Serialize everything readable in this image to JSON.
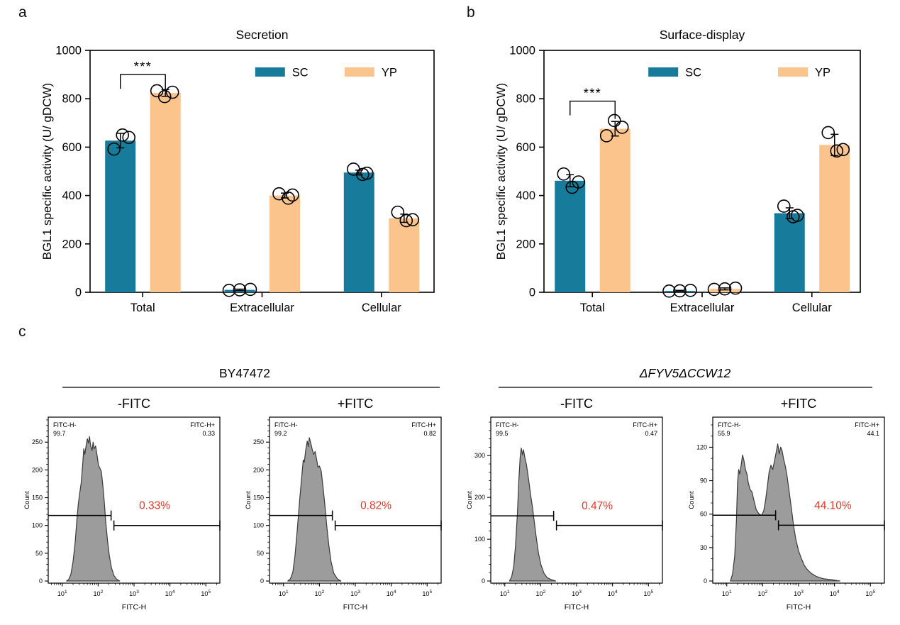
{
  "panels": {
    "a": "a",
    "b": "b",
    "c": "c"
  },
  "colors": {
    "sc": "#177C9B",
    "yp": "#FAC48C",
    "hist_fill": "#9C9C9C",
    "hist_stroke": "#3A3A3A",
    "percent_red": "#EE3524",
    "axis": "#000000"
  },
  "flow_headers": [
    {
      "label": "BY47472",
      "italic": false
    },
    {
      "label": "ΔFYV5ΔCCW12",
      "italic": true
    }
  ],
  "chart_data": [
    {
      "id": "panel-a",
      "type": "bar",
      "title": "Secretion",
      "ylabel": "BGL1 specific activity (U/ gDCW)",
      "ylim": [
        0,
        1000
      ],
      "yticks": [
        0,
        200,
        400,
        600,
        800,
        1000
      ],
      "categories": [
        "Total",
        "Extracellular",
        "Cellular"
      ],
      "legend": [
        "SC",
        "YP"
      ],
      "series": [
        {
          "name": "SC",
          "color_key": "sc",
          "values": [
            627,
            10,
            495
          ],
          "sd": [
            30,
            3,
            10
          ],
          "points": [
            [
              592,
              650,
              640
            ],
            [
              8,
              10,
              12
            ],
            [
              509,
              487,
              492
            ]
          ]
        },
        {
          "name": "YP",
          "color_key": "yp",
          "values": [
            824,
            400,
            306
          ],
          "sd": [
            14,
            10,
            17
          ],
          "points": [
            [
              833,
              809,
              827
            ],
            [
              407,
              389,
              402
            ],
            [
              331,
              296,
              300
            ]
          ]
        }
      ],
      "significance": {
        "category": "Total",
        "label": "***",
        "y": 900
      }
    },
    {
      "id": "panel-b",
      "type": "bar",
      "title": "Surface-display",
      "ylabel": "BGL1 specific activity (U/ gDCW)",
      "ylim": [
        0,
        1000
      ],
      "yticks": [
        0,
        200,
        400,
        600,
        800,
        1000
      ],
      "categories": [
        "Total",
        "Extracellular",
        "Cellular"
      ],
      "legend": [
        "SC",
        "YP"
      ],
      "series": [
        {
          "name": "SC",
          "color_key": "sc",
          "values": [
            461,
            6,
            327
          ],
          "sd": [
            25,
            2,
            22
          ],
          "points": [
            [
              489,
              434,
              456
            ],
            [
              5,
              6,
              8
            ],
            [
              356,
              312,
              318
            ]
          ]
        },
        {
          "name": "YP",
          "color_key": "yp",
          "values": [
            676,
            14,
            609
          ],
          "sd": [
            30,
            4,
            44
          ],
          "points": [
            [
              647,
              710,
              682
            ],
            [
              12,
              14,
              17
            ],
            [
              660,
              584,
              590
            ]
          ]
        }
      ],
      "significance": {
        "category": "Total",
        "label": "***",
        "y": 790
      }
    },
    {
      "id": "hist-1",
      "type": "area",
      "group": "BY47472",
      "title": "-FITC",
      "xlabel": "FITC-H",
      "ylabel": "Count",
      "xscale": "log",
      "xlim_log": [
        0.61,
        5.39
      ],
      "ymax": 295,
      "yticks": [
        0,
        50,
        100,
        150,
        200,
        250
      ],
      "minor_step": 10,
      "corner_left": {
        "label": "FITC-H-",
        "value": "99.7"
      },
      "corner_right": {
        "label": "FITC-H+",
        "value": "0.33"
      },
      "percent_label": "0.33%",
      "gate": {
        "split_log": 2.4,
        "neg_y": 118,
        "pos_y": 100
      },
      "curve_log_x_counts": [
        [
          1.12,
          0
        ],
        [
          1.18,
          3
        ],
        [
          1.24,
          12
        ],
        [
          1.3,
          34
        ],
        [
          1.36,
          70
        ],
        [
          1.41,
          112
        ],
        [
          1.45,
          140
        ],
        [
          1.49,
          160
        ],
        [
          1.53,
          178
        ],
        [
          1.57,
          210
        ],
        [
          1.6,
          238
        ],
        [
          1.63,
          228
        ],
        [
          1.66,
          242
        ],
        [
          1.7,
          256
        ],
        [
          1.73,
          248
        ],
        [
          1.76,
          260
        ],
        [
          1.79,
          244
        ],
        [
          1.83,
          235
        ],
        [
          1.86,
          250
        ],
        [
          1.89,
          238
        ],
        [
          1.93,
          243
        ],
        [
          1.97,
          226
        ],
        [
          2.01,
          208
        ],
        [
          2.05,
          203
        ],
        [
          2.09,
          197
        ],
        [
          2.13,
          172
        ],
        [
          2.17,
          143
        ],
        [
          2.21,
          108
        ],
        [
          2.26,
          74
        ],
        [
          2.31,
          46
        ],
        [
          2.37,
          24
        ],
        [
          2.44,
          10
        ],
        [
          2.52,
          3
        ],
        [
          2.6,
          0
        ]
      ]
    },
    {
      "id": "hist-2",
      "type": "area",
      "group": "BY47472",
      "title": "+FITC",
      "xlabel": "FITC-H",
      "ylabel": "Count",
      "xscale": "log",
      "xlim_log": [
        0.61,
        5.39
      ],
      "ymax": 295,
      "yticks": [
        0,
        50,
        100,
        150,
        200,
        250
      ],
      "minor_step": 10,
      "corner_left": {
        "label": "FITC-H-",
        "value": "99.2"
      },
      "corner_right": {
        "label": "FITC-H+",
        "value": "0.82"
      },
      "percent_label": "0.82%",
      "gate": {
        "split_log": 2.4,
        "neg_y": 118,
        "pos_y": 100
      },
      "curve_log_x_counts": [
        [
          1.12,
          0
        ],
        [
          1.19,
          4
        ],
        [
          1.26,
          16
        ],
        [
          1.32,
          45
        ],
        [
          1.38,
          90
        ],
        [
          1.43,
          130
        ],
        [
          1.47,
          160
        ],
        [
          1.51,
          190
        ],
        [
          1.55,
          218
        ],
        [
          1.58,
          214
        ],
        [
          1.62,
          236
        ],
        [
          1.66,
          252
        ],
        [
          1.69,
          242
        ],
        [
          1.72,
          258
        ],
        [
          1.76,
          248
        ],
        [
          1.8,
          237
        ],
        [
          1.84,
          228
        ],
        [
          1.88,
          233
        ],
        [
          1.92,
          220
        ],
        [
          1.96,
          205
        ],
        [
          2.0,
          207
        ],
        [
          2.05,
          198
        ],
        [
          2.1,
          170
        ],
        [
          2.15,
          138
        ],
        [
          2.2,
          102
        ],
        [
          2.26,
          66
        ],
        [
          2.32,
          36
        ],
        [
          2.4,
          14
        ],
        [
          2.5,
          4
        ],
        [
          2.6,
          0
        ]
      ]
    },
    {
      "id": "hist-3",
      "type": "area",
      "group": "ΔFYV5ΔCCW12",
      "title": "-FITC",
      "xlabel": "FITC-H",
      "ylabel": "Count",
      "xscale": "log",
      "xlim_log": [
        0.61,
        5.39
      ],
      "ymax": 392,
      "yticks": [
        0,
        100,
        200,
        300
      ],
      "minor_step": 20,
      "corner_left": {
        "label": "FITC-H-",
        "value": "99.5"
      },
      "corner_right": {
        "label": "FITC-H+",
        "value": "0.47"
      },
      "percent_label": "0.47%",
      "gate": {
        "split_log": 2.4,
        "neg_y": 156,
        "pos_y": 133
      },
      "curve_log_x_counts": [
        [
          1.13,
          0
        ],
        [
          1.19,
          10
        ],
        [
          1.25,
          35
        ],
        [
          1.3,
          85
        ],
        [
          1.35,
          160
        ],
        [
          1.39,
          240
        ],
        [
          1.43,
          298
        ],
        [
          1.46,
          318
        ],
        [
          1.49,
          302
        ],
        [
          1.52,
          314
        ],
        [
          1.56,
          295
        ],
        [
          1.6,
          280
        ],
        [
          1.64,
          258
        ],
        [
          1.68,
          232
        ],
        [
          1.72,
          205
        ],
        [
          1.77,
          178
        ],
        [
          1.82,
          142
        ],
        [
          1.88,
          102
        ],
        [
          1.94,
          66
        ],
        [
          2.01,
          38
        ],
        [
          2.09,
          19
        ],
        [
          2.18,
          8
        ],
        [
          2.3,
          3
        ],
        [
          2.42,
          0
        ]
      ]
    },
    {
      "id": "hist-4",
      "type": "area",
      "group": "ΔFYV5ΔCCW12",
      "title": "+FITC",
      "xlabel": "FITC-H",
      "ylabel": "Count",
      "xscale": "log",
      "xlim_log": [
        0.61,
        5.39
      ],
      "ymax": 147,
      "yticks": [
        0,
        30,
        60,
        90,
        120
      ],
      "minor_step": 10,
      "corner_left": {
        "label": "FITC-H-",
        "value": "55.9"
      },
      "corner_right": {
        "label": "FITC-H+",
        "value": "44.1"
      },
      "percent_label": "44.10%",
      "gate": {
        "split_log": 2.4,
        "neg_y": 59,
        "pos_y": 50
      },
      "curve_log_x_counts": [
        [
          1.1,
          0
        ],
        [
          1.16,
          6
        ],
        [
          1.22,
          22
        ],
        [
          1.27,
          55
        ],
        [
          1.3,
          88
        ],
        [
          1.33,
          100
        ],
        [
          1.36,
          96
        ],
        [
          1.4,
          104
        ],
        [
          1.44,
          113
        ],
        [
          1.48,
          108
        ],
        [
          1.52,
          100
        ],
        [
          1.56,
          96
        ],
        [
          1.6,
          88
        ],
        [
          1.65,
          82
        ],
        [
          1.7,
          80
        ],
        [
          1.76,
          72
        ],
        [
          1.82,
          64
        ],
        [
          1.9,
          60
        ],
        [
          1.97,
          59
        ],
        [
          2.03,
          63
        ],
        [
          2.08,
          72
        ],
        [
          2.13,
          85
        ],
        [
          2.18,
          98
        ],
        [
          2.23,
          104
        ],
        [
          2.28,
          100
        ],
        [
          2.33,
          108
        ],
        [
          2.38,
          116
        ],
        [
          2.42,
          123
        ],
        [
          2.46,
          114
        ],
        [
          2.5,
          120
        ],
        [
          2.54,
          117
        ],
        [
          2.58,
          110
        ],
        [
          2.63,
          103
        ],
        [
          2.68,
          94
        ],
        [
          2.74,
          80
        ],
        [
          2.8,
          65
        ],
        [
          2.86,
          50
        ],
        [
          2.92,
          38
        ],
        [
          3.0,
          27
        ],
        [
          3.08,
          20
        ],
        [
          3.16,
          14
        ],
        [
          3.25,
          10
        ],
        [
          3.35,
          7
        ],
        [
          3.5,
          4
        ],
        [
          3.7,
          2
        ],
        [
          3.95,
          1
        ],
        [
          4.15,
          0
        ]
      ]
    }
  ]
}
